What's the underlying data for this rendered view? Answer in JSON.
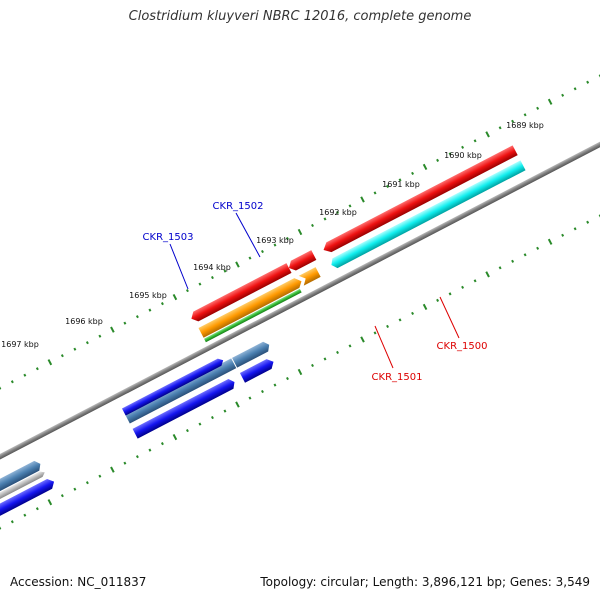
{
  "header": {
    "title": "Clostridium kluyveri NBRC 12016, complete genome"
  },
  "footer": {
    "accession": "Accession: NC_011837",
    "summary": "Topology: circular; Length: 3,896,121 bp; Genes: 3,549"
  },
  "ruler": {
    "tick_labels": [
      "1689 kbp",
      "1690 kbp",
      "1691 kbp",
      "1692 kbp",
      "1693 kbp",
      "1694 kbp",
      "1695 kbp",
      "1696 kbp",
      "1697 kbp"
    ]
  },
  "gene_labels": {
    "ckr_1503": "CKR_1503",
    "ckr_1502": "CKR_1502",
    "ckr_1501": "CKR_1501",
    "ckr_1500": "CKR_1500"
  },
  "colors": {
    "ruler_ticks": "#2a8a2a",
    "backbone": "#808080",
    "forward_gene": "#1a1aee",
    "forward_highlight": "#4a7fb0",
    "reverse_gene_red": "#ee1111",
    "reverse_gene_orange": "#ff9900",
    "reverse_gene_green": "#33bb33",
    "reverse_gene_cyan": "#11eeee",
    "label_blue": "#0000cc",
    "label_red": "#dd0000"
  }
}
